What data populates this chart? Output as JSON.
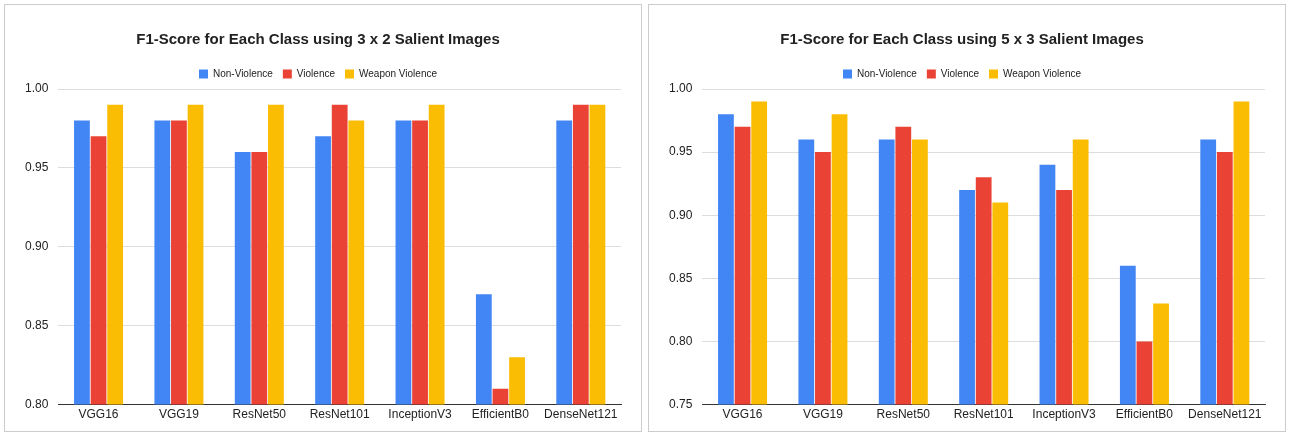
{
  "chart_data": [
    {
      "type": "bar",
      "title": "F1-Score for Each Class using 3 x 2 Salient Images",
      "categories": [
        "VGG16",
        "VGG19",
        "ResNet50",
        "ResNet101",
        "InceptionV3",
        "EfficientB0",
        "DenseNet121"
      ],
      "series": [
        {
          "name": "Non-Violence",
          "color": "#4285f4",
          "values": [
            0.98,
            0.98,
            0.96,
            0.97,
            0.98,
            0.87,
            0.98
          ]
        },
        {
          "name": "Violence",
          "color": "#ea4335",
          "values": [
            0.97,
            0.98,
            0.96,
            0.99,
            0.98,
            0.81,
            0.99
          ]
        },
        {
          "name": "Weapon Violence",
          "color": "#fbbc04",
          "values": [
            0.99,
            0.99,
            0.99,
            0.98,
            0.99,
            0.83,
            0.99
          ]
        }
      ],
      "ylim": [
        0.8,
        1.0
      ],
      "yticks": [
        {
          "value": 0.8,
          "label": "0.80"
        },
        {
          "value": 0.85,
          "label": "0.85"
        },
        {
          "value": 0.9,
          "label": "0.90"
        },
        {
          "value": 0.95,
          "label": "0.95"
        },
        {
          "value": 1.0,
          "label": "1.00"
        }
      ],
      "grid": "y",
      "legend": "top"
    },
    {
      "type": "bar",
      "title": "F1-Score for Each Class using 5 x 3 Salient Images",
      "categories": [
        "VGG16",
        "VGG19",
        "ResNet50",
        "ResNet101",
        "InceptionV3",
        "EfficientB0",
        "DenseNet121"
      ],
      "series": [
        {
          "name": "Non-Violence",
          "color": "#4285f4",
          "values": [
            0.98,
            0.96,
            0.96,
            0.92,
            0.94,
            0.86,
            0.96
          ]
        },
        {
          "name": "Violence",
          "color": "#ea4335",
          "values": [
            0.97,
            0.95,
            0.97,
            0.93,
            0.92,
            0.8,
            0.95
          ]
        },
        {
          "name": "Weapon Violence",
          "color": "#fbbc04",
          "values": [
            0.99,
            0.98,
            0.96,
            0.91,
            0.96,
            0.83,
            0.99
          ]
        }
      ],
      "ylim": [
        0.75,
        1.0
      ],
      "yticks": [
        {
          "value": 0.75,
          "label": "0.75"
        },
        {
          "value": 0.8,
          "label": "0.80"
        },
        {
          "value": 0.85,
          "label": "0.85"
        },
        {
          "value": 0.9,
          "label": "0.90"
        },
        {
          "value": 0.95,
          "label": "0.95"
        },
        {
          "value": 1.0,
          "label": "1.00"
        }
      ],
      "grid": "y",
      "legend": "top"
    }
  ]
}
